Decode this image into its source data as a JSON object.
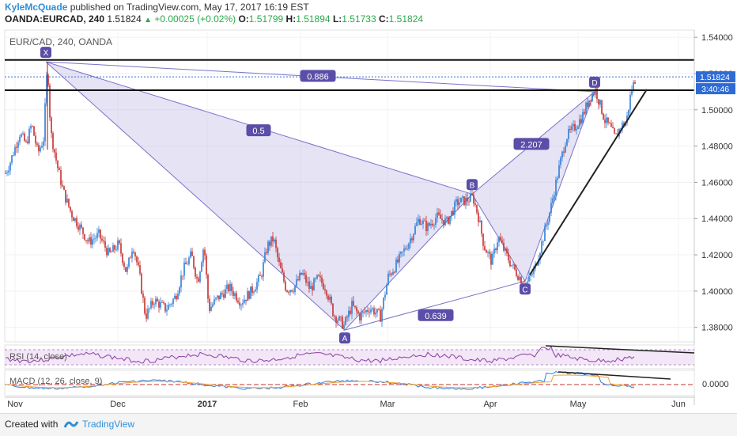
{
  "header": {
    "user": "KyleMcQuade",
    "published": " published on TradingView.com, May 17, 2017 16:19 EST",
    "symbol": "OANDA:EURCAD, 240",
    "last": "1.51824",
    "change": "+0.00025 (+0.02%)",
    "o_label": "O:",
    "o": "1.51799",
    "h_label": "H:",
    "h": "1.51894",
    "l_label": "L:",
    "l": "1.51733",
    "c_label": "C:",
    "c": "1.51824"
  },
  "footer": {
    "created": "Created with",
    "brand": "TradingView"
  },
  "chart_data": [
    {
      "type": "candlestick",
      "title": "EUR/CAD, 240, OANDA",
      "x_ticks": [
        "Nov",
        "Dec",
        "2017",
        "Feb",
        "Mar",
        "Apr",
        "May",
        "Jun"
      ],
      "y_ticks": [
        "1.54000",
        "1.52000",
        "1.50000",
        "1.48000",
        "1.46000",
        "1.44000",
        "1.42000",
        "1.40000",
        "1.38000"
      ],
      "ylim": [
        1.372,
        1.544
      ],
      "price_label": "1.51824",
      "countdown_label": "3:40:46",
      "price_path": [
        [
          0,
          1.458
        ],
        [
          12,
          1.47
        ],
        [
          25,
          1.487
        ],
        [
          33,
          1.481
        ],
        [
          40,
          1.492
        ],
        [
          48,
          1.476
        ],
        [
          55,
          1.484
        ],
        [
          60,
          1.526
        ],
        [
          64,
          1.488
        ],
        [
          72,
          1.47
        ],
        [
          80,
          1.455
        ],
        [
          90,
          1.443
        ],
        [
          100,
          1.436
        ],
        [
          112,
          1.427
        ],
        [
          125,
          1.431
        ],
        [
          138,
          1.42
        ],
        [
          150,
          1.426
        ],
        [
          160,
          1.41
        ],
        [
          168,
          1.426
        ],
        [
          176,
          1.41
        ],
        [
          184,
          1.386
        ],
        [
          195,
          1.395
        ],
        [
          210,
          1.39
        ],
        [
          222,
          1.397
        ],
        [
          232,
          1.412
        ],
        [
          242,
          1.42
        ],
        [
          250,
          1.405
        ],
        [
          258,
          1.426
        ],
        [
          264,
          1.39
        ],
        [
          275,
          1.396
        ],
        [
          290,
          1.402
        ],
        [
          305,
          1.394
        ],
        [
          318,
          1.4
        ],
        [
          330,
          1.408
        ],
        [
          338,
          1.425
        ],
        [
          346,
          1.429
        ],
        [
          352,
          1.416
        ],
        [
          362,
          1.401
        ],
        [
          372,
          1.402
        ],
        [
          382,
          1.41
        ],
        [
          392,
          1.401
        ],
        [
          402,
          1.407
        ],
        [
          412,
          1.402
        ],
        [
          422,
          1.387
        ],
        [
          435,
          1.381
        ],
        [
          445,
          1.392
        ],
        [
          455,
          1.386
        ],
        [
          468,
          1.391
        ],
        [
          481,
          1.386
        ],
        [
          491,
          1.408
        ],
        [
          503,
          1.416
        ],
        [
          518,
          1.428
        ],
        [
          530,
          1.44
        ],
        [
          540,
          1.435
        ],
        [
          552,
          1.441
        ],
        [
          565,
          1.438
        ],
        [
          578,
          1.449
        ],
        [
          590,
          1.45
        ],
        [
          598,
          1.452
        ],
        [
          605,
          1.441
        ],
        [
          612,
          1.425
        ],
        [
          622,
          1.416
        ],
        [
          630,
          1.43
        ],
        [
          640,
          1.42
        ],
        [
          650,
          1.412
        ],
        [
          660,
          1.406
        ],
        [
          666,
          1.404
        ],
        [
          676,
          1.412
        ],
        [
          686,
          1.428
        ],
        [
          696,
          1.445
        ],
        [
          706,
          1.466
        ],
        [
          716,
          1.485
        ],
        [
          726,
          1.49
        ],
        [
          736,
          1.496
        ],
        [
          746,
          1.507
        ],
        [
          753,
          1.511
        ],
        [
          758,
          1.504
        ],
        [
          765,
          1.494
        ],
        [
          772,
          1.49
        ],
        [
          778,
          1.484
        ],
        [
          785,
          1.491
        ],
        [
          792,
          1.493
        ],
        [
          798,
          1.51
        ],
        [
          804,
          1.518
        ]
      ],
      "pattern_points": [
        {
          "label": "X",
          "x": 58,
          "y": 1.5265
        },
        {
          "label": "A",
          "x": 436,
          "y": 1.3785
        },
        {
          "label": "B",
          "x": 597,
          "y": 1.4535
        },
        {
          "label": "C",
          "x": 664,
          "y": 1.4055
        },
        {
          "label": "D",
          "x": 752,
          "y": 1.51
        }
      ],
      "ratios": [
        {
          "label": "0.886",
          "x": 402,
          "y": 1.5185
        },
        {
          "label": "0.5",
          "x": 327,
          "y": 1.4885
        },
        {
          "label": "2.207",
          "x": 672,
          "y": 1.481
        },
        {
          "label": "0.639",
          "x": 551,
          "y": 1.3865
        }
      ],
      "horizontal_lines": [
        1.5275,
        1.5108
      ],
      "dotted_line": 1.5182,
      "trendline": [
        [
          670,
          1.409
        ],
        [
          818,
          1.5113
        ]
      ]
    },
    {
      "type": "line",
      "title": "RSI (14, close)",
      "band": [
        30,
        70
      ]
    },
    {
      "type": "line",
      "title": "MACD (12, 26, close, 9)",
      "y_ticks": [
        "0.0000"
      ]
    }
  ],
  "colors": {
    "up": "#2e7cd6",
    "down": "#c5302f",
    "pattern_fill": "#b4aee0",
    "pattern_line": "#7a73c9",
    "label_bg": "#5a4ea8",
    "rsi": "#8a3fa3",
    "rsi_band": "#f3e6f7"
  }
}
